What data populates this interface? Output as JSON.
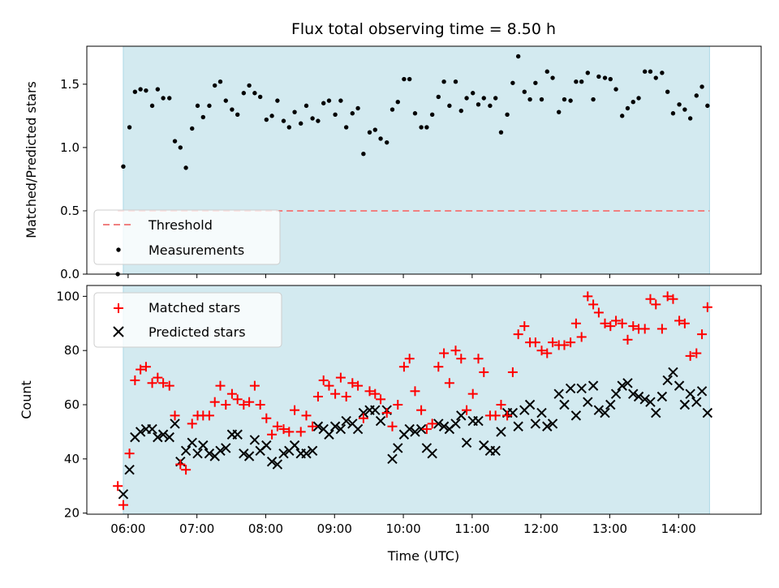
{
  "chart_data": [
    {
      "type": "scatter",
      "title": "Flux total observing time = 8.50 h",
      "ylabel": "Matched/Predicted stars",
      "xlabel": "",
      "x_unit": "hours UTC",
      "xlim": [
        5.4,
        15.2
      ],
      "ylim": [
        0,
        1.8
      ],
      "yticks": [
        0.0,
        0.5,
        1.0,
        1.5
      ],
      "ytick_labels": [
        "0.0",
        "0.5",
        "1.0",
        "1.5"
      ],
      "shaded_span": [
        5.93,
        14.45
      ],
      "shade_color": "#d3eaf0",
      "threshold": {
        "name": "Threshold",
        "value": 0.5,
        "color": "#f08080"
      },
      "legend": {
        "position": "lower left",
        "items": [
          "Threshold",
          "Measurements"
        ]
      },
      "series": [
        {
          "name": "Measurements",
          "marker": "dot",
          "color": "#000000",
          "x": [
            5.85,
            5.93,
            6.02,
            6.1,
            6.18,
            6.26,
            6.35,
            6.43,
            6.51,
            6.6,
            6.68,
            6.76,
            6.84,
            6.93,
            7.01,
            7.09,
            7.18,
            7.26,
            7.34,
            7.42,
            7.51,
            7.59,
            7.68,
            7.76,
            7.84,
            7.92,
            8.01,
            8.09,
            8.17,
            8.26,
            8.34,
            8.42,
            8.51,
            8.59,
            8.68,
            8.76,
            8.84,
            8.92,
            9.01,
            9.09,
            9.17,
            9.26,
            9.34,
            9.42,
            9.51,
            9.59,
            9.67,
            9.76,
            9.84,
            9.92,
            10.01,
            10.09,
            10.17,
            10.26,
            10.34,
            10.42,
            10.51,
            10.59,
            10.67,
            10.76,
            10.84,
            10.92,
            11.01,
            11.09,
            11.17,
            11.26,
            11.34,
            11.42,
            11.51,
            11.59,
            11.67,
            11.76,
            11.84,
            11.92,
            12.01,
            12.09,
            12.17,
            12.26,
            12.34,
            12.43,
            12.51,
            12.59,
            12.68,
            12.76,
            12.84,
            12.93,
            13.01,
            13.09,
            13.18,
            13.26,
            13.34,
            13.42,
            13.51,
            13.59,
            13.67,
            13.76,
            13.84,
            13.92,
            14.01,
            14.09,
            14.17,
            14.26,
            14.34,
            14.42
          ],
          "y": [
            0.0,
            0.85,
            1.16,
            1.44,
            1.46,
            1.45,
            1.33,
            1.46,
            1.39,
            1.39,
            1.05,
            1.0,
            0.84,
            1.15,
            1.33,
            1.24,
            1.33,
            1.49,
            1.52,
            1.37,
            1.3,
            1.26,
            1.43,
            1.49,
            1.43,
            1.4,
            1.22,
            1.25,
            1.37,
            1.21,
            1.16,
            1.28,
            1.19,
            1.33,
            1.23,
            1.21,
            1.35,
            1.37,
            1.26,
            1.37,
            1.16,
            1.27,
            1.31,
            0.95,
            1.12,
            1.14,
            1.07,
            1.04,
            1.3,
            1.36,
            1.54,
            1.54,
            1.27,
            1.16,
            1.16,
            1.26,
            1.4,
            1.52,
            1.33,
            1.52,
            1.29,
            1.39,
            1.43,
            1.34,
            1.39,
            1.33,
            1.39,
            1.12,
            1.26,
            1.51,
            1.72,
            1.44,
            1.38,
            1.51,
            1.38,
            1.6,
            1.55,
            1.28,
            1.38,
            1.37,
            1.52,
            1.52,
            1.59,
            1.38,
            1.56,
            1.55,
            1.54,
            1.46,
            1.25,
            1.31,
            1.36,
            1.39,
            1.6,
            1.6,
            1.55,
            1.59,
            1.44,
            1.27,
            1.34,
            1.3,
            1.23,
            1.41,
            1.48,
            1.33
          ]
        }
      ]
    },
    {
      "type": "scatter",
      "title": "",
      "ylabel": "Count",
      "xlabel": "Time (UTC)",
      "x_unit": "hours UTC",
      "xlim": [
        5.4,
        15.2
      ],
      "ylim": [
        19.6,
        104
      ],
      "yticks": [
        20,
        40,
        60,
        80,
        100
      ],
      "ytick_labels": [
        "20",
        "40",
        "60",
        "80",
        "100"
      ],
      "xticks": [
        6,
        7,
        8,
        9,
        10,
        11,
        12,
        13,
        14
      ],
      "xtick_labels": [
        "06:00",
        "07:00",
        "08:00",
        "09:00",
        "10:00",
        "11:00",
        "12:00",
        "13:00",
        "14:00"
      ],
      "shaded_span": [
        5.93,
        14.45
      ],
      "shade_color": "#d3eaf0",
      "legend": {
        "position": "upper left",
        "items": [
          "Matched stars",
          "Predicted stars"
        ]
      },
      "series": [
        {
          "name": "Matched stars",
          "marker": "plus",
          "color": "#ff0000",
          "x": [
            5.85,
            5.93,
            6.02,
            6.1,
            6.18,
            6.26,
            6.35,
            6.43,
            6.51,
            6.6,
            6.68,
            6.76,
            6.84,
            6.93,
            7.01,
            7.09,
            7.18,
            7.26,
            7.34,
            7.42,
            7.51,
            7.59,
            7.68,
            7.76,
            7.84,
            7.92,
            8.01,
            8.09,
            8.17,
            8.26,
            8.34,
            8.42,
            8.51,
            8.59,
            8.68,
            8.76,
            8.84,
            8.92,
            9.01,
            9.09,
            9.17,
            9.26,
            9.34,
            9.42,
            9.51,
            9.59,
            9.67,
            9.76,
            9.84,
            9.92,
            10.01,
            10.09,
            10.17,
            10.26,
            10.34,
            10.42,
            10.51,
            10.59,
            10.67,
            10.76,
            10.84,
            10.92,
            11.01,
            11.09,
            11.17,
            11.26,
            11.34,
            11.42,
            11.51,
            11.59,
            11.67,
            11.76,
            11.84,
            11.92,
            12.01,
            12.09,
            12.17,
            12.26,
            12.34,
            12.43,
            12.51,
            12.59,
            12.68,
            12.76,
            12.84,
            12.93,
            13.01,
            13.09,
            13.18,
            13.26,
            13.34,
            13.42,
            13.51,
            13.59,
            13.67,
            13.76,
            13.84,
            13.92,
            14.01,
            14.09,
            14.17,
            14.26,
            14.34,
            14.42
          ],
          "y": [
            30,
            23,
            42,
            69,
            73,
            74,
            68,
            70,
            68,
            67,
            56,
            38,
            36,
            53,
            56,
            56,
            56,
            61,
            67,
            60,
            64,
            62,
            60,
            61,
            67,
            60,
            55,
            49,
            52,
            51,
            50,
            58,
            50,
            56,
            52,
            63,
            69,
            67,
            64,
            70,
            63,
            68,
            67,
            55,
            65,
            64,
            62,
            57,
            52,
            60,
            74,
            77,
            65,
            58,
            51,
            53,
            74,
            79,
            68,
            80,
            77,
            58,
            64,
            77,
            72,
            56,
            56,
            60,
            56,
            72,
            86,
            89,
            83,
            83,
            80,
            79,
            83,
            82,
            82,
            83,
            90,
            85,
            100,
            97,
            94,
            90,
            89,
            91,
            90,
            84,
            89,
            88,
            88,
            99,
            97,
            88,
            100,
            99,
            91,
            90,
            78,
            79,
            86,
            96
          ]
        },
        {
          "name": "Predicted stars",
          "marker": "x",
          "color": "#000000",
          "x": [
            5.93,
            6.02,
            6.1,
            6.18,
            6.26,
            6.35,
            6.43,
            6.51,
            6.6,
            6.68,
            6.76,
            6.84,
            6.93,
            7.01,
            7.09,
            7.18,
            7.26,
            7.34,
            7.42,
            7.51,
            7.59,
            7.68,
            7.76,
            7.84,
            7.92,
            8.01,
            8.09,
            8.17,
            8.26,
            8.34,
            8.42,
            8.51,
            8.59,
            8.68,
            8.76,
            8.84,
            8.92,
            9.01,
            9.09,
            9.17,
            9.26,
            9.34,
            9.42,
            9.51,
            9.59,
            9.67,
            9.76,
            9.84,
            9.92,
            10.01,
            10.09,
            10.17,
            10.26,
            10.34,
            10.42,
            10.51,
            10.59,
            10.67,
            10.76,
            10.84,
            10.92,
            11.01,
            11.09,
            11.17,
            11.26,
            11.34,
            11.42,
            11.51,
            11.59,
            11.67,
            11.76,
            11.84,
            11.92,
            12.01,
            12.09,
            12.17,
            12.26,
            12.34,
            12.43,
            12.51,
            12.59,
            12.68,
            12.76,
            12.84,
            12.93,
            13.01,
            13.09,
            13.18,
            13.26,
            13.34,
            13.42,
            13.51,
            13.59,
            13.67,
            13.76,
            13.84,
            13.92,
            14.01,
            14.09,
            14.17,
            14.26,
            14.34,
            14.42
          ],
          "y": [
            27,
            36,
            48,
            50,
            51,
            51,
            48,
            49,
            48,
            53,
            39,
            43,
            46,
            42,
            45,
            42,
            41,
            43,
            44,
            49,
            49,
            42,
            41,
            47,
            43,
            45,
            39,
            38,
            42,
            43,
            45,
            42,
            42,
            43,
            52,
            51,
            49,
            52,
            51,
            54,
            53,
            51,
            57,
            58,
            58,
            54,
            58,
            40,
            44,
            49,
            51,
            50,
            51,
            44,
            42,
            53,
            52,
            51,
            53,
            56,
            46,
            54,
            54,
            45,
            43,
            43,
            50,
            57,
            57,
            52,
            58,
            60,
            53,
            57,
            52,
            53,
            64,
            60,
            66,
            56,
            66,
            61,
            67,
            58,
            57,
            60,
            64,
            67,
            68,
            64,
            63,
            62,
            61,
            57,
            63,
            69,
            72,
            67,
            60,
            64,
            61,
            65,
            57
          ]
        }
      ]
    }
  ]
}
